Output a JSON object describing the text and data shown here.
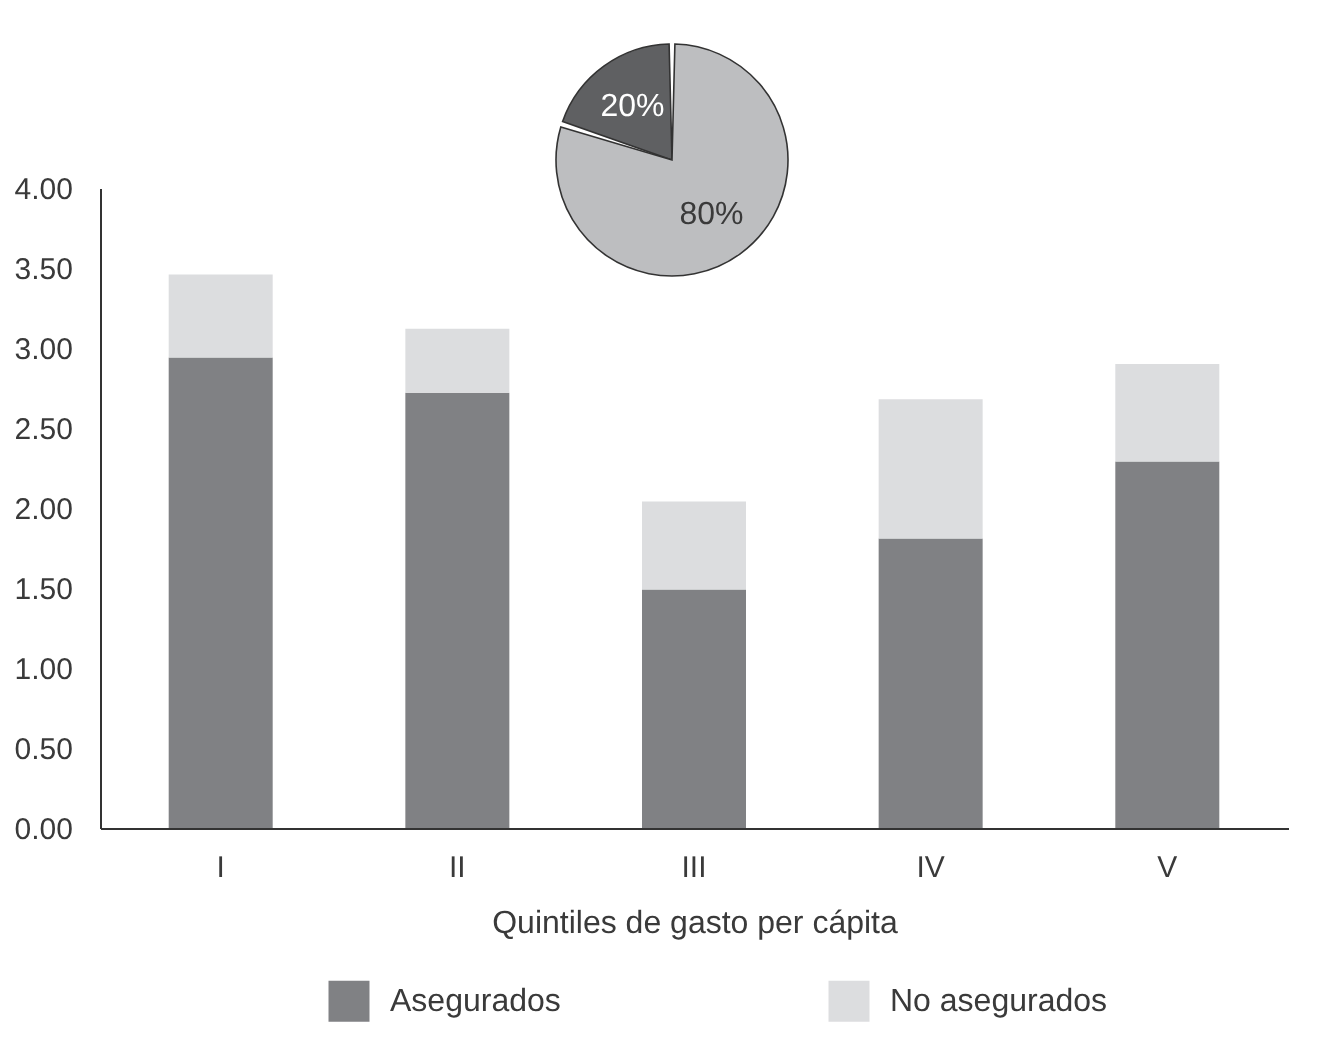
{
  "chart_data": [
    {
      "type": "pie",
      "categories": [
        null,
        null
      ],
      "values": [
        20,
        80
      ],
      "colors": [
        "#5f6062",
        "#bdbec0"
      ],
      "value_labels": [
        "20%",
        "80%"
      ]
    },
    {
      "type": "bar",
      "stacked": true,
      "categories": [
        "I",
        "II",
        "III",
        "IV",
        "V"
      ],
      "xlabel": "Quintiles de gasto per cápita",
      "series": [
        {
          "name": "Asegurados",
          "color": "#808184",
          "values": [
            2.94,
            2.72,
            1.49,
            1.81,
            2.29
          ]
        },
        {
          "name": "No asegurados",
          "color": "#dcdddf",
          "values": [
            0.52,
            0.4,
            0.55,
            0.87,
            0.61
          ]
        }
      ],
      "ylim": [
        0,
        4
      ],
      "yticks": [
        {
          "value": 0,
          "label": "0.00"
        },
        {
          "value": 0.5,
          "label": "0.50"
        },
        {
          "value": 1,
          "label": "1.00"
        },
        {
          "value": 1.5,
          "label": "1.50"
        },
        {
          "value": 2,
          "label": "2.00"
        },
        {
          "value": 2.5,
          "label": "2.50"
        },
        {
          "value": 3,
          "label": "3.00"
        },
        {
          "value": 3.5,
          "label": "3.50"
        },
        {
          "value": 4,
          "label": "4.00"
        }
      ],
      "legend": "bottom"
    }
  ]
}
